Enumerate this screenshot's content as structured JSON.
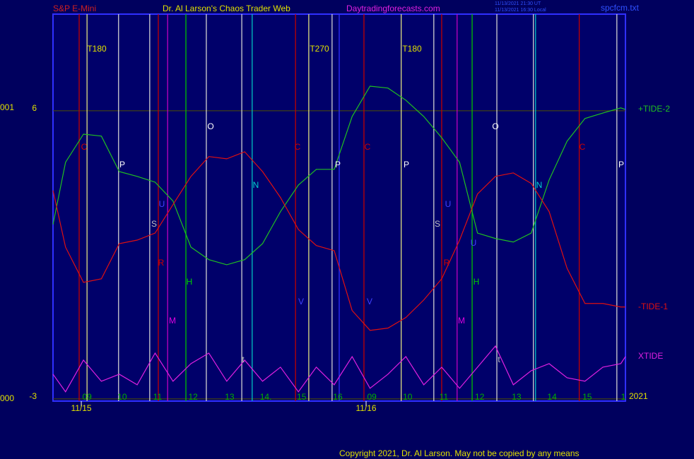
{
  "header": {
    "market": "S&P E-Mini",
    "title": "Dr. Al Larson's Chaos Trader Web",
    "site": "Daytradingforecasts.com",
    "stamps": [
      "11/13/2021 21:30 UT",
      "11/13/2021 16:30 Local"
    ],
    "file": "spcfcm.txt"
  },
  "chart_data": {
    "type": "line",
    "xlim": [
      -0.85,
      15.13
    ],
    "ylim": [
      -3.07,
      9.02
    ],
    "yticks": [
      6,
      -3
    ],
    "grid": true,
    "grid_color": "#505000",
    "side_labels": [
      "001",
      "000"
    ],
    "xticks": [
      {
        "value": 0.1,
        "label": "09"
      },
      {
        "value": 1.08,
        "label": "10"
      },
      {
        "value": 2.07,
        "label": "11"
      },
      {
        "value": 3.06,
        "label": "12"
      },
      {
        "value": 4.08,
        "label": "13"
      },
      {
        "value": 5.09,
        "label": "14."
      },
      {
        "value": 6.09,
        "label": "15"
      },
      {
        "value": 7.1,
        "label": "16"
      },
      {
        "value": 8.05,
        "label": "09"
      },
      {
        "value": 9.05,
        "label": "10"
      },
      {
        "value": 10.06,
        "label": "11"
      },
      {
        "value": 11.06,
        "label": "12"
      },
      {
        "value": 12.09,
        "label": "13"
      },
      {
        "value": 13.08,
        "label": "14"
      },
      {
        "value": 14.06,
        "label": "15"
      },
      {
        "value": 15.07,
        "label": "1"
      }
    ],
    "dates": [
      {
        "value": -0.06,
        "label": "11/15"
      },
      {
        "value": 7.89,
        "label": "11/16"
      }
    ],
    "year": "2021",
    "x": [
      -0.85,
      -0.5,
      0,
      0.5,
      1,
      1.5,
      2,
      2.5,
      3,
      3.5,
      4,
      4.5,
      5,
      5.5,
      6,
      6.5,
      7,
      7.5,
      8,
      8.5,
      9,
      9.5,
      10,
      10.5,
      11,
      11.5,
      12,
      12.5,
      13,
      13.5,
      14,
      14.5,
      15,
      15.13
    ],
    "series": [
      {
        "name": "+TIDE-2",
        "color": "#20c020",
        "values": [
          2.45,
          4.39,
          5.27,
          5.21,
          4.1,
          3.95,
          3.77,
          3.18,
          1.74,
          1.35,
          1.19,
          1.35,
          1.85,
          2.85,
          3.68,
          4.17,
          4.17,
          5.82,
          6.77,
          6.71,
          6.33,
          5.82,
          5.16,
          4.39,
          2.18,
          2.01,
          1.9,
          2.18,
          3.84,
          5.05,
          5.76,
          5.93,
          6.09,
          6.04
        ]
      },
      {
        "name": "-TIDE-1",
        "color": "#e01010",
        "values": [
          3.51,
          1.74,
          0.64,
          0.75,
          1.85,
          1.96,
          2.18,
          3.07,
          3.95,
          4.57,
          4.5,
          4.72,
          4.1,
          3.29,
          2.29,
          1.79,
          1.63,
          -0.24,
          -0.86,
          -0.79,
          -0.46,
          0.09,
          0.75,
          1.96,
          3.4,
          3.95,
          4.06,
          3.73,
          2.85,
          1.08,
          -0.02,
          -0.02,
          -0.13,
          -0.13
        ]
      },
      {
        "name": "XTIDE",
        "color": "#e020e0",
        "values": [
          -2.23,
          -2.78,
          -1.79,
          -2.45,
          -2.23,
          -2.56,
          -1.57,
          -2.45,
          -1.9,
          -1.57,
          -2.45,
          -1.79,
          -2.45,
          -2.01,
          -2.78,
          -2.01,
          -2.56,
          -1.68,
          -2.67,
          -2.23,
          -1.68,
          -2.56,
          -2.01,
          -2.67,
          -2.01,
          -1.35,
          -2.56,
          -2.12,
          -1.9,
          -2.34,
          -2.45,
          -2.01,
          -1.9,
          -1.68
        ]
      }
    ],
    "events": [
      {
        "x": -0.12,
        "color": "#c00000"
      },
      {
        "x": 0.1,
        "color": "#e0e080"
      },
      {
        "x": 0.98,
        "color": "#d0d0d0"
      },
      {
        "x": 1.85,
        "color": "#d0d0d0"
      },
      {
        "x": 2.09,
        "color": "#c00000"
      },
      {
        "x": 2.35,
        "color": "#c000c0"
      },
      {
        "x": 2.86,
        "color": "#00c000"
      },
      {
        "x": 3.43,
        "color": "#d0d0d0"
      },
      {
        "x": 4.42,
        "color": "#d0d0d0"
      },
      {
        "x": 4.71,
        "color": "#00c0c0"
      },
      {
        "x": 5.92,
        "color": "#c00000"
      },
      {
        "x": 6.29,
        "color": "#e0e080"
      },
      {
        "x": 6.94,
        "color": "#d0d0d0"
      },
      {
        "x": 7.14,
        "color": "#3030ff"
      },
      {
        "x": 7.83,
        "color": "#c00000"
      },
      {
        "x": 8.87,
        "color": "#e0e080"
      },
      {
        "x": 9.78,
        "color": "#d0d0d0"
      },
      {
        "x": 10.0,
        "color": "#c00000"
      },
      {
        "x": 10.43,
        "color": "#c000c0"
      },
      {
        "x": 10.85,
        "color": "#00c000"
      },
      {
        "x": 11.54,
        "color": "#d0d0d0"
      },
      {
        "x": 12.56,
        "color": "#d0d0d0"
      },
      {
        "x": 12.62,
        "color": "#00c0c0"
      },
      {
        "x": 13.84,
        "color": "#c00000"
      },
      {
        "x": 14.89,
        "color": "#d0d0d0"
      }
    ],
    "markers": [
      {
        "label": "T180",
        "color": "#e0e000"
      },
      {
        "label": "T270",
        "color": "#e0e000"
      },
      {
        "label": "T180",
        "color": "#e0e000"
      },
      {
        "label": "C",
        "color": "#d00000"
      },
      {
        "label": "C",
        "color": "#d00000"
      },
      {
        "label": "C",
        "color": "#d00000"
      },
      {
        "label": "C",
        "color": "#d00000"
      },
      {
        "label": "P",
        "color": "#ffffff"
      },
      {
        "label": "P",
        "color": "#ffffff"
      },
      {
        "label": "P",
        "color": "#ffffff"
      },
      {
        "label": "P",
        "color": "#ffffff"
      },
      {
        "label": "O",
        "color": "#ffffff"
      },
      {
        "label": "O",
        "color": "#ffffff"
      },
      {
        "label": "N",
        "color": "#00d0d0"
      },
      {
        "label": "N",
        "color": "#00d0d0"
      },
      {
        "label": "S",
        "color": "#c0c0c0"
      },
      {
        "label": "S",
        "color": "#c0c0c0"
      },
      {
        "label": "R",
        "color": "#d00000"
      },
      {
        "label": "R",
        "color": "#d00000"
      },
      {
        "label": "H",
        "color": "#00d000"
      },
      {
        "label": "H",
        "color": "#00d000"
      },
      {
        "label": "M",
        "color": "#e000e0"
      },
      {
        "label": "M",
        "color": "#e000e0"
      },
      {
        "label": "U",
        "color": "#4040ff"
      },
      {
        "label": "U",
        "color": "#4040ff"
      },
      {
        "label": "U",
        "color": "#4040ff"
      },
      {
        "label": "V",
        "color": "#4040ff"
      },
      {
        "label": "V",
        "color": "#4040ff"
      },
      {
        "label": "t",
        "color": "#c0c0c0"
      },
      {
        "label": "t",
        "color": "#c0c0c0"
      }
    ]
  },
  "copyright": "Copyright 2021, Dr. Al Larson. May not be copied by any means"
}
